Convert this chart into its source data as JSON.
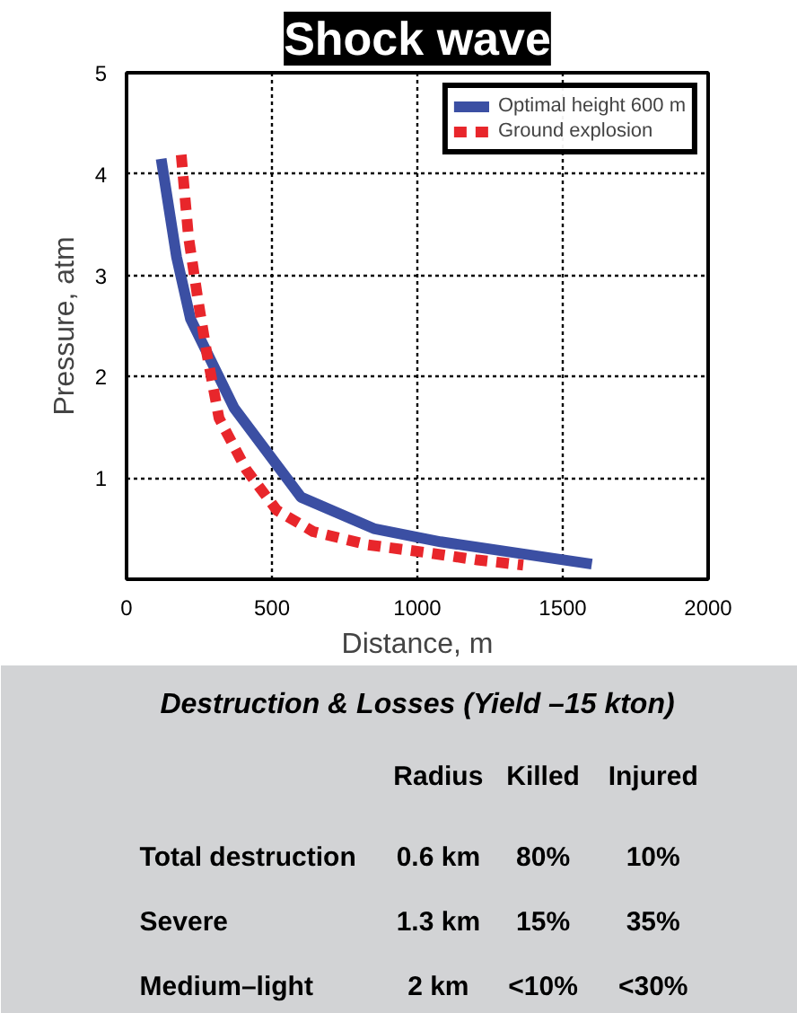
{
  "chart_data": [
    {
      "type": "line",
      "title": "Shock wave",
      "xlabel": "Distance, m",
      "ylabel": "Pressure, atm",
      "xlim": [
        0,
        2000
      ],
      "ylim": [
        0,
        5
      ],
      "xticks": [
        0,
        500,
        1000,
        1500,
        2000
      ],
      "yticks": [
        1,
        2,
        3,
        4,
        5
      ],
      "grid": true,
      "legend": "top right",
      "series": [
        {
          "name": "Optimal height 600 m",
          "color": "#3b4fa3",
          "line_style": "solid",
          "x": [
            119,
            172,
            220,
            370,
            600,
            850,
            1080,
            1600
          ],
          "values": [
            4.15,
            3.18,
            2.57,
            1.69,
            0.81,
            0.5,
            0.37,
            0.15
          ]
        },
        {
          "name": "Ground explosion",
          "color": "#e8262b",
          "line_style": "dashed",
          "x": [
            188,
            213,
            245,
            276,
            318,
            412,
            517,
            642,
            830,
            1040,
            1207,
            1364
          ],
          "values": [
            4.19,
            3.38,
            2.77,
            2.23,
            1.59,
            1.08,
            0.68,
            0.47,
            0.34,
            0.26,
            0.19,
            0.14
          ]
        }
      ]
    },
    {
      "type": "other",
      "title": "Destruction & Losses (Yield –15 kton)",
      "categories": [
        null,
        "Radius",
        "Killed",
        "Injured"
      ],
      "annotations": [
        "Total destruction",
        "0.6 km",
        "80%",
        "10%",
        "Severe",
        "1.3 km",
        "15%",
        "35%",
        "Medium–light",
        "2 km",
        "<10%",
        "<30%"
      ]
    }
  ]
}
